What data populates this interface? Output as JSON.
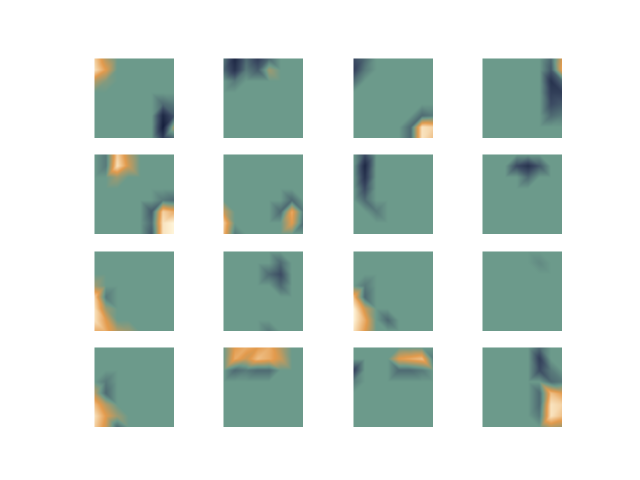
{
  "chart_data": {
    "type": "heatmap",
    "tick_labels": false,
    "zlim": [
      -1,
      1
    ],
    "panels": [
      {
        "cells": [
          [
            0.8,
            0.3,
            0,
            0,
            0,
            0,
            0,
            0
          ],
          [
            0.9,
            0.5,
            0,
            0,
            0,
            0,
            0,
            0
          ],
          [
            0.3,
            0.1,
            0,
            0,
            0,
            0,
            0,
            0
          ],
          [
            0,
            0,
            0,
            0,
            0,
            0,
            0,
            0
          ],
          [
            0,
            0,
            0,
            0,
            0,
            0,
            -0.3,
            -0.2
          ],
          [
            0,
            0,
            0,
            0,
            0,
            0,
            -0.8,
            -0.4
          ],
          [
            0,
            0,
            0,
            0,
            0,
            0,
            -0.9,
            0.3
          ],
          [
            0,
            0,
            0,
            0,
            0,
            0,
            -0.6,
            -0.3
          ]
        ]
      },
      {
        "cells": [
          [
            -0.2,
            -0.8,
            -0.3,
            -0.6,
            -0.3,
            0,
            0,
            0
          ],
          [
            -0.3,
            -0.7,
            -0.2,
            -0.4,
            0.2,
            0,
            0,
            0
          ],
          [
            0,
            -0.2,
            0,
            0,
            0,
            0,
            0,
            0
          ],
          [
            0,
            0,
            0,
            0,
            0,
            0,
            0,
            0
          ],
          [
            0,
            0,
            0,
            0,
            0,
            0,
            0,
            0
          ],
          [
            0,
            0,
            0,
            0,
            0,
            0,
            0,
            0
          ],
          [
            0,
            0,
            0,
            0,
            0,
            0,
            0,
            0
          ],
          [
            0,
            0,
            0,
            0,
            0,
            0,
            0,
            0
          ]
        ]
      },
      {
        "cells": [
          [
            -0.5,
            -0.3,
            0,
            0,
            0,
            0,
            0,
            0
          ],
          [
            -0.6,
            -0.2,
            0,
            0,
            0,
            0,
            0,
            0
          ],
          [
            -0.3,
            0,
            0,
            0,
            0,
            0,
            0,
            0
          ],
          [
            0,
            0,
            0,
            0,
            0,
            0,
            0,
            0
          ],
          [
            0,
            0,
            0,
            0,
            0,
            0,
            0,
            0
          ],
          [
            0,
            0,
            0,
            0,
            0,
            0,
            -0.3,
            -0.2
          ],
          [
            0,
            0,
            0,
            0,
            0,
            -0.3,
            0.9,
            0.8
          ],
          [
            0,
            0,
            0,
            0,
            0,
            -0.3,
            0.9,
            0.7
          ]
        ]
      },
      {
        "cells": [
          [
            0,
            0,
            0,
            0,
            0,
            0,
            -0.3,
            0.5
          ],
          [
            0,
            0,
            0,
            0,
            0,
            0,
            -0.4,
            0.6
          ],
          [
            0,
            0,
            0,
            0,
            0,
            0,
            -0.7,
            -0.3
          ],
          [
            0,
            0,
            0,
            0,
            0,
            0,
            -0.6,
            -0.6
          ],
          [
            0,
            0,
            0,
            0,
            0,
            0,
            -0.5,
            -0.4
          ],
          [
            0,
            0,
            0,
            0,
            0,
            0,
            -0.3,
            -0.2
          ],
          [
            0,
            0,
            0,
            0,
            0,
            0,
            0,
            0
          ],
          [
            0,
            0,
            0,
            0,
            0,
            0,
            0,
            0
          ]
        ]
      },
      {
        "cells": [
          [
            0,
            -0.2,
            0.8,
            0.3,
            0,
            0,
            0,
            0
          ],
          [
            0,
            -0.2,
            0.9,
            0.4,
            0,
            0,
            0,
            0
          ],
          [
            0,
            0,
            0.2,
            0,
            0,
            0,
            0,
            0
          ],
          [
            0,
            0,
            0,
            0,
            0,
            0,
            0,
            0
          ],
          [
            0,
            0,
            0,
            0,
            0,
            0,
            -0.2,
            -0.3
          ],
          [
            0,
            0,
            0,
            0,
            0,
            -0.4,
            0.8,
            0.6
          ],
          [
            0,
            0,
            0,
            0,
            0,
            -0.3,
            0.9,
            1
          ],
          [
            0,
            0,
            0,
            0,
            0,
            -0.4,
            0.9,
            1
          ]
        ]
      },
      {
        "cells": [
          [
            0,
            0,
            0,
            0,
            0,
            0,
            0,
            0
          ],
          [
            0,
            0,
            0,
            0,
            0,
            0,
            0,
            0
          ],
          [
            0,
            0,
            0,
            0,
            0,
            0,
            0,
            0
          ],
          [
            0,
            0,
            0,
            0,
            0,
            0,
            0,
            0
          ],
          [
            0,
            0,
            0,
            0,
            0,
            0,
            -0.3,
            0
          ],
          [
            0.4,
            0,
            0,
            0,
            0,
            -0.3,
            0.6,
            -0.2
          ],
          [
            0.8,
            0,
            0,
            0,
            0,
            0,
            0.5,
            -0.3
          ],
          [
            0.7,
            -0.2,
            0,
            0,
            0,
            0,
            0,
            0
          ]
        ]
      },
      {
        "cells": [
          [
            0,
            -0.5,
            0,
            0,
            0,
            0,
            0,
            0
          ],
          [
            0,
            -0.8,
            0,
            0,
            0,
            0,
            0,
            0
          ],
          [
            0,
            -0.7,
            0,
            0,
            0,
            0,
            0,
            0
          ],
          [
            0,
            -0.5,
            0,
            0,
            0,
            0,
            0,
            0
          ],
          [
            0,
            -0.3,
            0,
            0,
            0,
            0,
            0,
            0
          ],
          [
            0,
            0,
            -0.2,
            0,
            0,
            0,
            0,
            0
          ],
          [
            0,
            0,
            0,
            0,
            0,
            0,
            0,
            0
          ],
          [
            0,
            0,
            0,
            0,
            0,
            0,
            0,
            0
          ]
        ]
      },
      {
        "cells": [
          [
            0,
            0,
            0,
            0,
            0,
            0,
            0,
            0
          ],
          [
            0,
            0,
            0,
            -0.5,
            -0.7,
            -0.4,
            0,
            0
          ],
          [
            0,
            0,
            0,
            0,
            -0.3,
            0,
            0,
            0
          ],
          [
            0,
            0,
            0,
            0,
            0,
            0,
            0,
            0
          ],
          [
            0,
            0,
            0,
            0,
            0,
            0,
            0,
            0
          ],
          [
            0,
            0,
            0,
            0,
            0,
            0,
            0,
            0
          ],
          [
            0,
            0,
            0,
            0,
            0,
            0,
            0,
            0
          ],
          [
            0,
            0,
            0,
            0,
            0,
            0,
            0,
            0
          ]
        ]
      },
      {
        "cells": [
          [
            0,
            0,
            0,
            0,
            0,
            0,
            0,
            0
          ],
          [
            0,
            0,
            0,
            0,
            0,
            0,
            0,
            0
          ],
          [
            0,
            0,
            0,
            0,
            0,
            0,
            0,
            0
          ],
          [
            0.2,
            0,
            0,
            0,
            0,
            0,
            0,
            0
          ],
          [
            0.8,
            -0.2,
            0,
            0,
            0,
            0,
            0,
            0
          ],
          [
            0.9,
            0.2,
            0,
            0,
            0,
            0,
            0,
            0
          ],
          [
            0.9,
            0.5,
            0,
            0,
            0,
            0,
            0,
            0
          ],
          [
            0.6,
            0.6,
            0.3,
            0.2,
            0,
            0,
            0,
            0
          ]
        ]
      },
      {
        "cells": [
          [
            0,
            0,
            0,
            0,
            0,
            0,
            0,
            0
          ],
          [
            0,
            0,
            0,
            0,
            0,
            -0.3,
            0,
            0
          ],
          [
            0,
            0,
            0,
            0,
            -0.3,
            -0.5,
            0,
            0
          ],
          [
            0,
            0,
            0,
            0,
            0,
            -0.3,
            0,
            0
          ],
          [
            0,
            0,
            0,
            0,
            0,
            0,
            0,
            0
          ],
          [
            0,
            0,
            0,
            0,
            0,
            0,
            0,
            0
          ],
          [
            0,
            0,
            0,
            0,
            0,
            0,
            0,
            0
          ],
          [
            0,
            0,
            0,
            0,
            -0.2,
            0,
            0,
            0
          ]
        ]
      },
      {
        "cells": [
          [
            0,
            0,
            0,
            0,
            0,
            0,
            0,
            0
          ],
          [
            0,
            0,
            0,
            0,
            0,
            0,
            0,
            0
          ],
          [
            0,
            0,
            0,
            0,
            0,
            0,
            0,
            0
          ],
          [
            0,
            -0.2,
            0,
            0,
            0,
            0,
            0,
            0
          ],
          [
            0.7,
            -0.3,
            0,
            0,
            0,
            0,
            0,
            0
          ],
          [
            1,
            0.4,
            0,
            0,
            0,
            0,
            0,
            0
          ],
          [
            1,
            0.6,
            0,
            -0.3,
            0,
            0,
            0,
            0
          ],
          [
            0.9,
            0.5,
            0,
            0,
            0,
            0,
            0,
            0
          ]
        ]
      },
      {
        "cells": [
          [
            0,
            0,
            0,
            0,
            0,
            0,
            0,
            0
          ],
          [
            0,
            0,
            0,
            0,
            0,
            -0.1,
            0,
            0
          ],
          [
            0,
            0,
            0,
            0,
            0,
            0,
            0,
            0
          ],
          [
            0,
            0,
            0,
            0,
            0,
            0,
            0,
            0
          ],
          [
            0,
            0,
            0,
            0,
            0,
            0,
            0,
            0
          ],
          [
            0,
            0,
            0,
            0,
            0,
            0,
            0,
            0
          ],
          [
            0,
            0,
            0,
            0,
            0,
            0,
            0,
            0
          ],
          [
            0,
            0,
            0,
            0,
            0,
            0,
            0,
            0
          ]
        ]
      },
      {
        "cells": [
          [
            0,
            0,
            0,
            0,
            0,
            0,
            0,
            0
          ],
          [
            0,
            0,
            0,
            0,
            0,
            0,
            0,
            0
          ],
          [
            0,
            0,
            0,
            0,
            0,
            0,
            0,
            0
          ],
          [
            0,
            -0.2,
            0,
            0,
            0,
            0,
            0,
            0
          ],
          [
            0.3,
            -0.3,
            0,
            0,
            0,
            0,
            0,
            0
          ],
          [
            0.7,
            0.3,
            0,
            0,
            0,
            0,
            0,
            0
          ],
          [
            0.9,
            0.5,
            0.2,
            0,
            0,
            0,
            0,
            0
          ],
          [
            0.8,
            0.4,
            -0.3,
            0,
            0,
            0,
            0,
            0
          ]
        ]
      },
      {
        "cells": [
          [
            0,
            0.5,
            0.6,
            0.5,
            0.6,
            0.3,
            0,
            0
          ],
          [
            0,
            0.6,
            0.4,
            0.7,
            0.6,
            0.4,
            0,
            0
          ],
          [
            0,
            -0.3,
            -0.2,
            -0.3,
            -0.3,
            0,
            0,
            0
          ],
          [
            0,
            0,
            0,
            0,
            0,
            0,
            0,
            0
          ],
          [
            0,
            0,
            0,
            0,
            0,
            0,
            0,
            0
          ],
          [
            0,
            0,
            0,
            0,
            0,
            0,
            0,
            0
          ],
          [
            0,
            0,
            0,
            0,
            0,
            0,
            0,
            0
          ],
          [
            0,
            0,
            0,
            0,
            0,
            0,
            0,
            0
          ]
        ]
      },
      {
        "cells": [
          [
            0,
            0,
            0,
            0,
            0,
            0,
            0,
            0
          ],
          [
            0,
            0,
            0,
            0,
            0.5,
            0.6,
            0.7,
            -0.2
          ],
          [
            -0.6,
            0,
            0,
            0,
            -0.3,
            -0.3,
            -0.2,
            0
          ],
          [
            -0.2,
            0,
            0,
            0,
            0,
            0,
            0,
            0
          ],
          [
            0,
            0,
            0,
            0,
            0,
            0,
            0,
            0
          ],
          [
            0,
            0,
            0,
            0,
            0,
            0,
            0,
            0
          ],
          [
            0,
            0,
            0,
            0,
            0,
            0,
            0,
            0
          ],
          [
            0,
            0,
            0,
            0,
            0,
            0,
            0,
            0
          ]
        ]
      },
      {
        "cells": [
          [
            0,
            0,
            0,
            0,
            0,
            -0.3,
            0,
            0
          ],
          [
            0,
            0,
            0,
            0,
            0,
            -0.6,
            0,
            0
          ],
          [
            0,
            0,
            0,
            0,
            0,
            -0.5,
            -0.2,
            0
          ],
          [
            0,
            0,
            0,
            0,
            0,
            0,
            -0.3,
            -0.2
          ],
          [
            0,
            0,
            0,
            0,
            0,
            -0.3,
            0.7,
            0.5
          ],
          [
            0,
            0,
            0,
            0,
            0,
            -0.3,
            0.9,
            0.8
          ],
          [
            0,
            0,
            0,
            0,
            0,
            -0.2,
            0.9,
            0.7
          ],
          [
            0,
            0,
            0,
            0,
            0,
            0,
            0.3,
            0.2
          ]
        ]
      }
    ]
  }
}
